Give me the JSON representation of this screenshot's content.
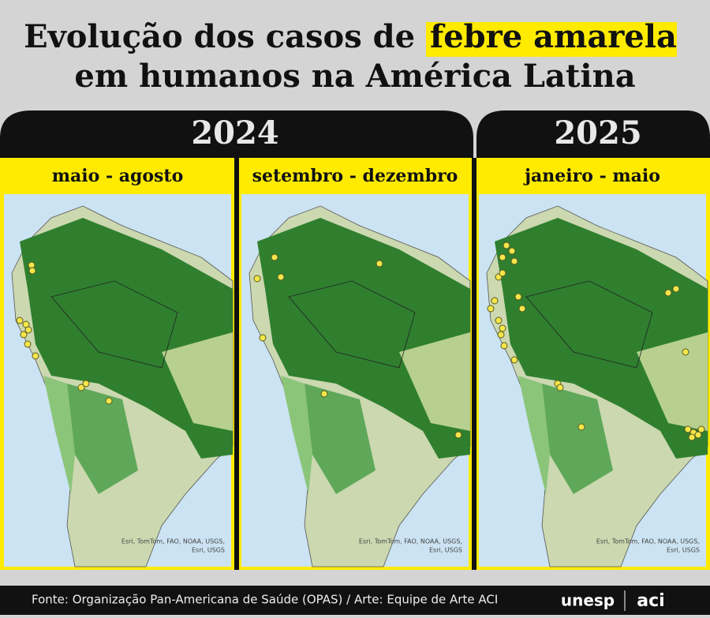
{
  "header": {
    "title_line1_start": "Evolução dos casos de ",
    "title_line1_highlight": "febre amarela",
    "title_line2": "em humanos na América Latina"
  },
  "years": [
    "2024",
    "2025"
  ],
  "panels": [
    {
      "label": "maio - agosto",
      "credit_line1": "Esri, TomTom, FAO, NOAA, USGS,",
      "credit_line2": "Esri, USGS"
    },
    {
      "label": "setembro - dezembro",
      "credit_line1": "Esri, TomTom, FAO, NOAA, USGS,",
      "credit_line2": "Esri, USGS"
    },
    {
      "label": "janeiro - maio",
      "credit_line1": "Esri, TomTom, FAO, NOAA, USGS,",
      "credit_line2": "Esri, USGS"
    }
  ],
  "footer": {
    "source": "Fonte: Organização Pan-Americana de Saúde (OPAS) / Arte: Equipe de Arte ACI",
    "logo1": "unesp",
    "logo2": "aci"
  }
}
